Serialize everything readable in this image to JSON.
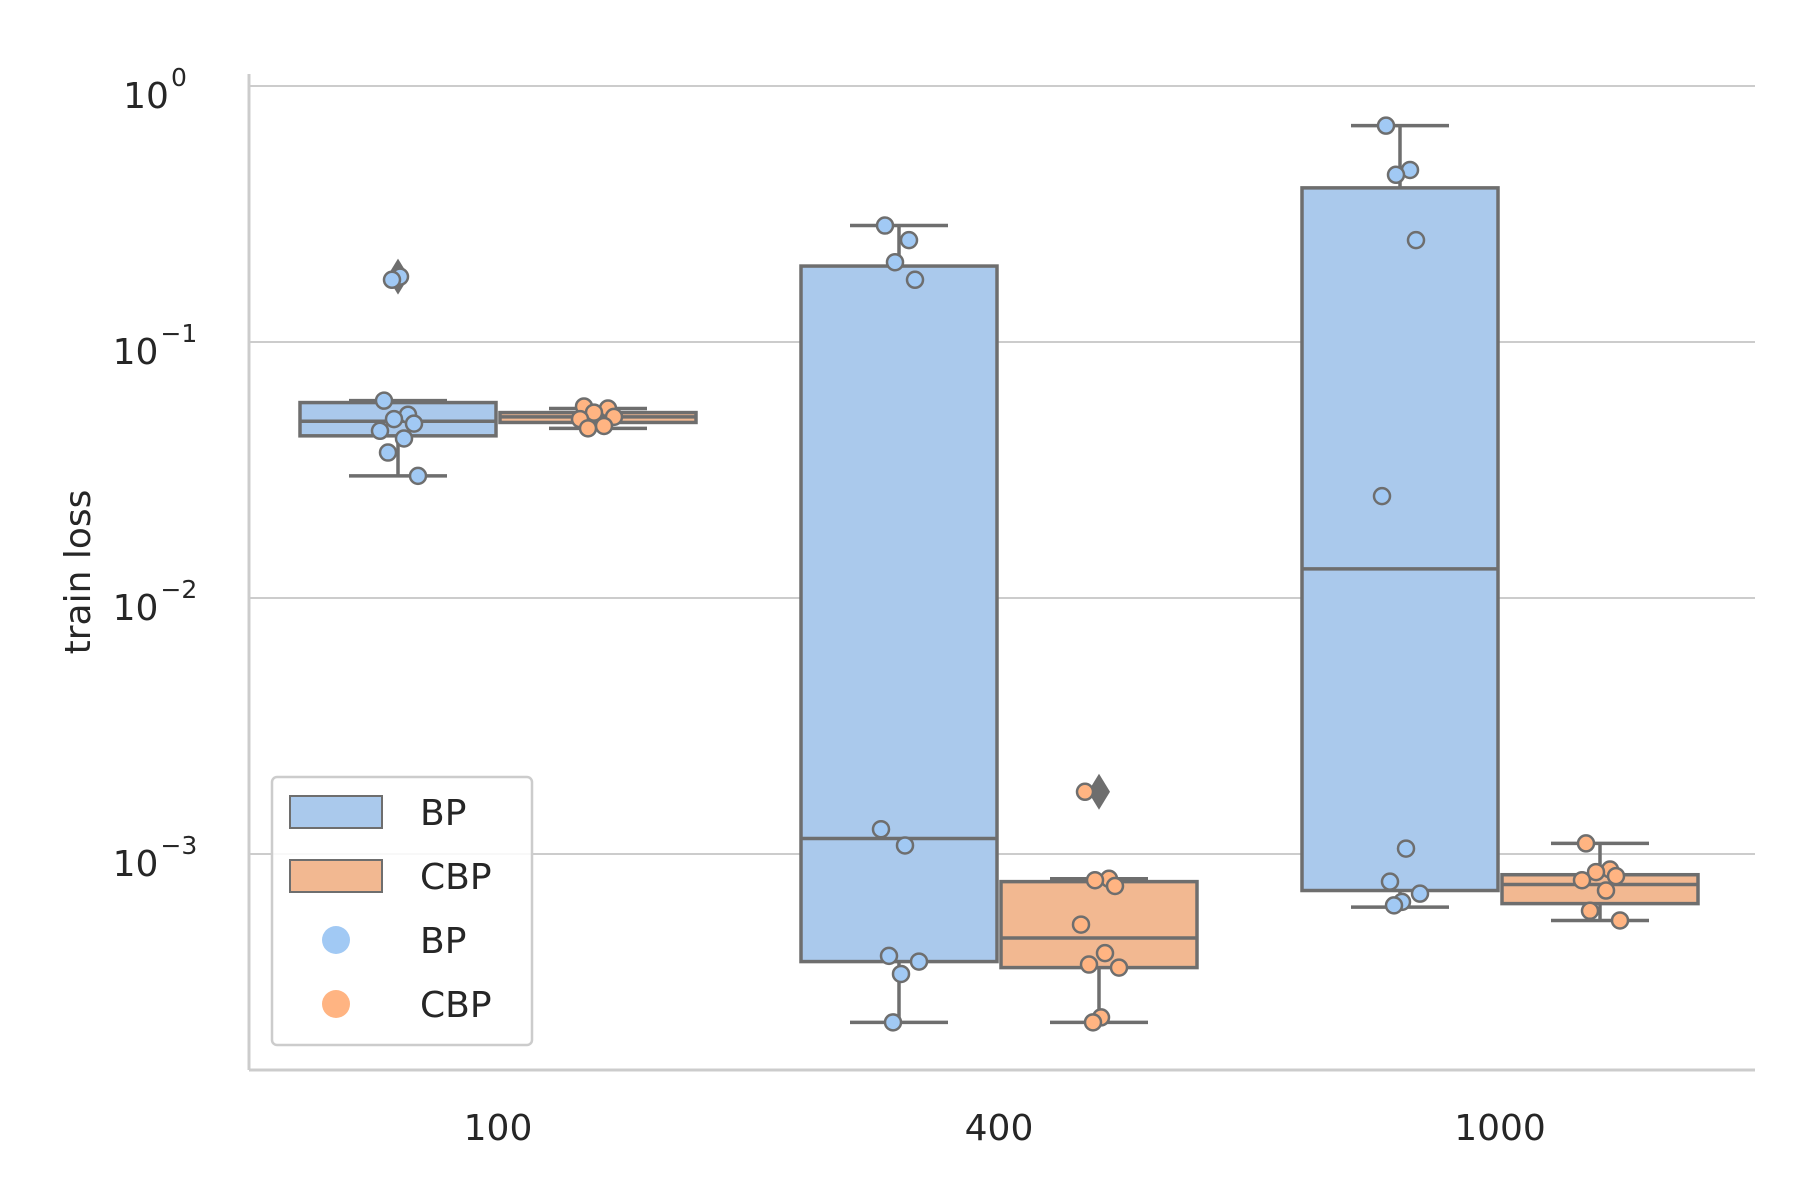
{
  "chart_data": {
    "type": "box",
    "title": "",
    "xlabel": "",
    "ylabel": "train loss",
    "yscale": "log",
    "ylim": [
      0.00015,
      1.0
    ],
    "yticks": [
      {
        "value": 1.0,
        "mantissa": "10",
        "exponent": "0"
      },
      {
        "value": 0.1,
        "mantissa": "10",
        "exponent": "−1"
      },
      {
        "value": 0.01,
        "mantissa": "10",
        "exponent": "−2"
      },
      {
        "value": 0.001,
        "mantissa": "10",
        "exponent": "−3"
      }
    ],
    "grid": "horizontal",
    "categories": [
      "100",
      "400",
      "1000"
    ],
    "colors": {
      "BP": "#aac9ec",
      "CBP": "#f2b891",
      "BP_point": "#a1c9f4",
      "CBP_point": "#ffb482",
      "edge": "#6e6e6e"
    },
    "series": [
      {
        "name": "BP",
        "boxes": [
          {
            "category": "100",
            "q1": 0.043,
            "median": 0.049,
            "q3": 0.058,
            "whisker_low": 0.03,
            "whisker_high": 0.059,
            "outliers": [
              0.18
            ]
          },
          {
            "category": "400",
            "q1": 0.00038,
            "median": 0.00115,
            "q3": 0.198,
            "whisker_low": 0.00022,
            "whisker_high": 0.285,
            "outliers": []
          },
          {
            "category": "1000",
            "q1": 0.00072,
            "median": 0.013,
            "q3": 0.4,
            "whisker_low": 0.00062,
            "whisker_high": 0.7,
            "outliers": []
          }
        ],
        "points": [
          {
            "category": "100",
            "values": [
              0.059,
              0.052,
              0.05,
              0.048,
              0.045,
              0.042,
              0.037,
              0.03,
              0.18,
              0.175
            ]
          },
          {
            "category": "400",
            "values": [
              0.285,
              0.25,
              0.205,
              0.175,
              0.00125,
              0.00108,
              0.0004,
              0.00038,
              0.00034,
              0.00022
            ]
          },
          {
            "category": "1000",
            "values": [
              0.7,
              0.47,
              0.45,
              0.25,
              0.025,
              0.00105,
              0.00078,
              0.0007,
              0.00065,
              0.00063
            ]
          }
        ]
      },
      {
        "name": "CBP",
        "boxes": [
          {
            "category": "100",
            "q1": 0.0485,
            "median": 0.051,
            "q3": 0.053,
            "whisker_low": 0.046,
            "whisker_high": 0.055,
            "outliers": []
          },
          {
            "category": "400",
            "q1": 0.00036,
            "median": 0.00047,
            "q3": 0.00078,
            "whisker_low": 0.00022,
            "whisker_high": 0.0008,
            "outliers": [
              0.00175
            ]
          },
          {
            "category": "1000",
            "q1": 0.00064,
            "median": 0.00076,
            "q3": 0.00083,
            "whisker_low": 0.00055,
            "whisker_high": 0.0011,
            "outliers": []
          }
        ],
        "points": [
          {
            "category": "100",
            "values": [
              0.056,
              0.055,
              0.053,
              0.051,
              0.05,
              0.047,
              0.046
            ]
          },
          {
            "category": "400",
            "values": [
              0.00175,
              0.0008,
              0.00079,
              0.00075,
              0.00053,
              0.00041,
              0.00037,
              0.00036,
              0.00023,
              0.00022
            ]
          },
          {
            "category": "1000",
            "values": [
              0.0011,
              0.00087,
              0.00085,
              0.00082,
              0.00079,
              0.00072,
              0.0006,
              0.00055
            ]
          }
        ]
      }
    ],
    "legend": {
      "position": "bottom-left",
      "entries": [
        {
          "label": "BP",
          "kind": "box",
          "series": "BP"
        },
        {
          "label": "CBP",
          "kind": "box",
          "series": "CBP"
        },
        {
          "label": "BP",
          "kind": "point",
          "series": "BP"
        },
        {
          "label": "CBP",
          "kind": "point",
          "series": "CBP"
        }
      ]
    }
  }
}
